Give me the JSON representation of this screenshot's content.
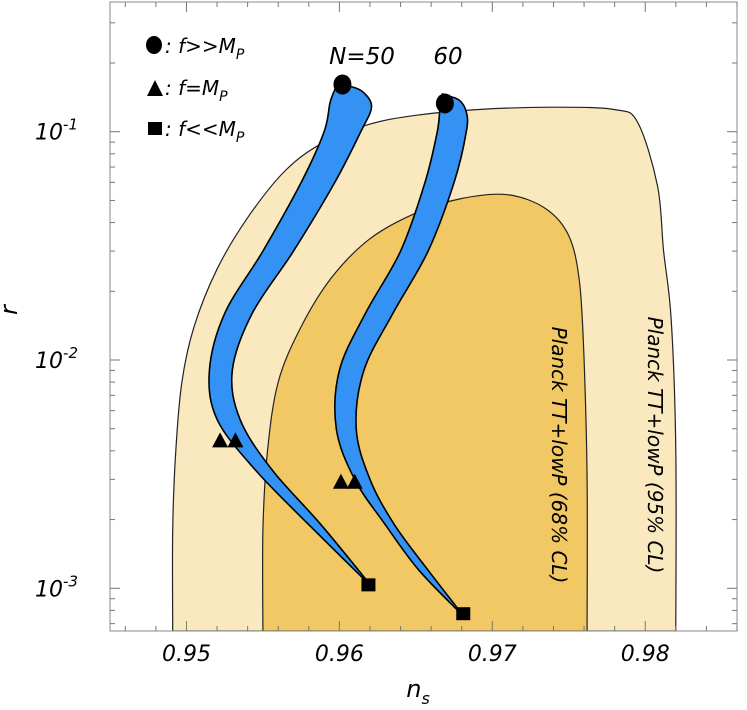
{
  "chart_data": {
    "type": "contour",
    "title": "",
    "xlabel": "n",
    "xlabel_sub": "s",
    "ylabel": "r",
    "xlim": [
      0.945,
      0.986
    ],
    "ylim": [
      0.00065,
      0.37
    ],
    "yscale": "log",
    "x_ticks": [
      0.95,
      0.96,
      0.97,
      0.98
    ],
    "x_tick_labels": [
      "0.95",
      "0.96",
      "0.97",
      "0.98"
    ],
    "y_ticks": [
      0.001,
      0.01,
      0.1
    ],
    "y_tick_labels": [
      {
        "base": "10",
        "exp": "-3"
      },
      {
        "base": "10",
        "exp": "-2"
      },
      {
        "base": "10",
        "exp": "-1"
      }
    ],
    "colors": {
      "planck95": "#fae9bf",
      "planck68": "#f1c863",
      "band": "#3392f4",
      "outline": "#000000"
    },
    "regions": [
      {
        "label": "Planck TT+lowP (95% CL)",
        "polygon": [
          [
            0.9491,
            0.00065
          ],
          [
            0.9491,
            0.0018
          ],
          [
            0.9493,
            0.004
          ],
          [
            0.9497,
            0.008
          ],
          [
            0.9505,
            0.014
          ],
          [
            0.952,
            0.025
          ],
          [
            0.954,
            0.042
          ],
          [
            0.9565,
            0.068
          ],
          [
            0.959,
            0.09
          ],
          [
            0.962,
            0.108
          ],
          [
            0.965,
            0.118
          ],
          [
            0.969,
            0.125
          ],
          [
            0.974,
            0.128
          ],
          [
            0.978,
            0.125
          ],
          [
            0.9795,
            0.11
          ],
          [
            0.9808,
            0.058
          ],
          [
            0.9812,
            0.03
          ],
          [
            0.9817,
            0.015
          ],
          [
            0.982,
            0.004
          ],
          [
            0.982,
            0.00065
          ]
        ]
      },
      {
        "label": "Planck TT+lowP (68% CL)",
        "polygon": [
          [
            0.955,
            0.00065
          ],
          [
            0.955,
            0.0018
          ],
          [
            0.9553,
            0.004
          ],
          [
            0.956,
            0.008
          ],
          [
            0.9575,
            0.014
          ],
          [
            0.9595,
            0.023
          ],
          [
            0.962,
            0.034
          ],
          [
            0.965,
            0.044
          ],
          [
            0.968,
            0.051
          ],
          [
            0.971,
            0.053
          ],
          [
            0.9735,
            0.046
          ],
          [
            0.975,
            0.035
          ],
          [
            0.9757,
            0.022
          ],
          [
            0.976,
            0.01
          ],
          [
            0.9762,
            0.003
          ],
          [
            0.9762,
            0.00065
          ]
        ]
      }
    ],
    "bands": [
      {
        "label": "N=50",
        "left_edge": [
          [
            0.9619,
            0.00105
          ],
          [
            0.958,
            0.0019
          ],
          [
            0.9545,
            0.0033
          ],
          [
            0.952,
            0.0055
          ],
          [
            0.9515,
            0.009
          ],
          [
            0.9525,
            0.016
          ],
          [
            0.955,
            0.03
          ],
          [
            0.9575,
            0.06
          ],
          [
            0.959,
            0.1
          ],
          [
            0.9594,
            0.135
          ],
          [
            0.9598,
            0.158
          ]
        ],
        "right_edge": [
          [
            0.9621,
            0.00102
          ],
          [
            0.9588,
            0.0019
          ],
          [
            0.9556,
            0.0033
          ],
          [
            0.9535,
            0.0055
          ],
          [
            0.953,
            0.009
          ],
          [
            0.9543,
            0.016
          ],
          [
            0.957,
            0.03
          ],
          [
            0.9597,
            0.06
          ],
          [
            0.9614,
            0.1
          ],
          [
            0.9621,
            0.128
          ],
          [
            0.9616,
            0.148
          ],
          [
            0.9607,
            0.158
          ],
          [
            0.9598,
            0.158
          ]
        ]
      },
      {
        "label": "60",
        "left_edge": [
          [
            0.9679,
            0.00078
          ],
          [
            0.9652,
            0.0012
          ],
          [
            0.963,
            0.0019
          ],
          [
            0.961,
            0.003
          ],
          [
            0.9598,
            0.005
          ],
          [
            0.96,
            0.009
          ],
          [
            0.9617,
            0.016
          ],
          [
            0.964,
            0.03
          ],
          [
            0.9656,
            0.06
          ],
          [
            0.9664,
            0.1
          ],
          [
            0.9666,
            0.13
          ],
          [
            0.9668,
            0.145
          ]
        ],
        "right_edge": [
          [
            0.9681,
            0.00076
          ],
          [
            0.9658,
            0.0012
          ],
          [
            0.9636,
            0.0019
          ],
          [
            0.962,
            0.003
          ],
          [
            0.9611,
            0.005
          ],
          [
            0.9616,
            0.009
          ],
          [
            0.9635,
            0.016
          ],
          [
            0.9658,
            0.03
          ],
          [
            0.9675,
            0.06
          ],
          [
            0.9683,
            0.1
          ],
          [
            0.9683,
            0.122
          ],
          [
            0.9678,
            0.138
          ],
          [
            0.9668,
            0.145
          ]
        ]
      }
    ],
    "markers": [
      {
        "shape": "circle",
        "x": 0.9602,
        "y": 0.161
      },
      {
        "shape": "circle",
        "x": 0.9669,
        "y": 0.133
      },
      {
        "shape": "triangle",
        "x": 0.9522,
        "y": 0.0044
      },
      {
        "shape": "triangle",
        "x": 0.9532,
        "y": 0.0044
      },
      {
        "shape": "triangle",
        "x": 0.9601,
        "y": 0.0029
      },
      {
        "shape": "triangle",
        "x": 0.961,
        "y": 0.0029
      },
      {
        "shape": "square",
        "x": 0.9619,
        "y": 0.00103
      },
      {
        "shape": "square",
        "x": 0.9681,
        "y": 0.00077
      }
    ],
    "legend": {
      "placement": "top-left",
      "entries": [
        {
          "shape": "circle",
          "text": ": f>>M",
          "sub": "P"
        },
        {
          "shape": "triangle",
          "text": ": f=M",
          "sub": "P"
        },
        {
          "shape": "square",
          "text": ": f<<M",
          "sub": "P"
        }
      ]
    },
    "annotations": {
      "n50": "N=50",
      "n60": "60",
      "region68": "Planck TT+lowP (68% CL)",
      "region95": "Planck TT+lowP (95% CL)"
    }
  }
}
